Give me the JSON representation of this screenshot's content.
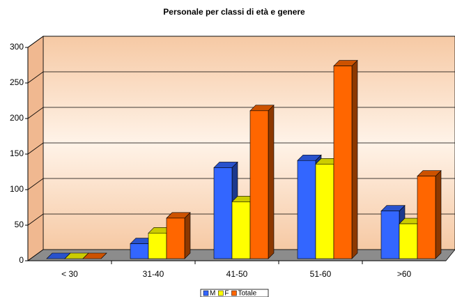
{
  "chart_data": {
    "type": "bar3d",
    "title": "Personale per classi di età e genere",
    "categories": [
      "< 30",
      "31-40",
      "41-50",
      "51-60",
      ">60"
    ],
    "series": [
      {
        "name": "M",
        "color": "#3366ff",
        "values": [
          0,
          21,
          128,
          138,
          67
        ]
      },
      {
        "name": "F",
        "color": "#ffff00",
        "values": [
          0,
          36,
          80,
          133,
          49
        ]
      },
      {
        "name": "Totale",
        "color": "#ff6600",
        "values": [
          0,
          57,
          208,
          271,
          116
        ]
      }
    ],
    "ylim": [
      0,
      300
    ],
    "yticks": [
      0,
      50,
      100,
      150,
      200,
      250,
      300
    ],
    "grid": true,
    "legend": "bottom"
  }
}
